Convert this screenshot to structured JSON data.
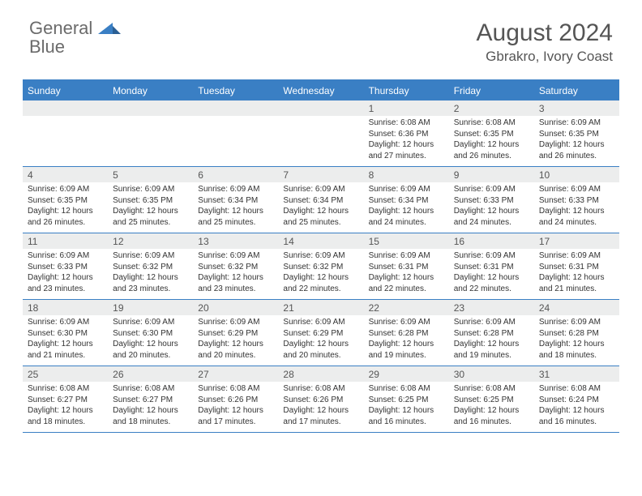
{
  "brand": {
    "general": "General",
    "blue": "Blue"
  },
  "title": "August 2024",
  "location": "Gbrakro, Ivory Coast",
  "colors": {
    "accent": "#3a7fc4",
    "header_text": "#555555",
    "band": "#eceded",
    "body_text": "#333333"
  },
  "day_headers": [
    "Sunday",
    "Monday",
    "Tuesday",
    "Wednesday",
    "Thursday",
    "Friday",
    "Saturday"
  ],
  "weeks": [
    [
      null,
      null,
      null,
      null,
      {
        "n": "1",
        "sr": "6:08 AM",
        "ss": "6:36 PM",
        "dl": "12 hours and 27 minutes."
      },
      {
        "n": "2",
        "sr": "6:08 AM",
        "ss": "6:35 PM",
        "dl": "12 hours and 26 minutes."
      },
      {
        "n": "3",
        "sr": "6:09 AM",
        "ss": "6:35 PM",
        "dl": "12 hours and 26 minutes."
      }
    ],
    [
      {
        "n": "4",
        "sr": "6:09 AM",
        "ss": "6:35 PM",
        "dl": "12 hours and 26 minutes."
      },
      {
        "n": "5",
        "sr": "6:09 AM",
        "ss": "6:35 PM",
        "dl": "12 hours and 25 minutes."
      },
      {
        "n": "6",
        "sr": "6:09 AM",
        "ss": "6:34 PM",
        "dl": "12 hours and 25 minutes."
      },
      {
        "n": "7",
        "sr": "6:09 AM",
        "ss": "6:34 PM",
        "dl": "12 hours and 25 minutes."
      },
      {
        "n": "8",
        "sr": "6:09 AM",
        "ss": "6:34 PM",
        "dl": "12 hours and 24 minutes."
      },
      {
        "n": "9",
        "sr": "6:09 AM",
        "ss": "6:33 PM",
        "dl": "12 hours and 24 minutes."
      },
      {
        "n": "10",
        "sr": "6:09 AM",
        "ss": "6:33 PM",
        "dl": "12 hours and 24 minutes."
      }
    ],
    [
      {
        "n": "11",
        "sr": "6:09 AM",
        "ss": "6:33 PM",
        "dl": "12 hours and 23 minutes."
      },
      {
        "n": "12",
        "sr": "6:09 AM",
        "ss": "6:32 PM",
        "dl": "12 hours and 23 minutes."
      },
      {
        "n": "13",
        "sr": "6:09 AM",
        "ss": "6:32 PM",
        "dl": "12 hours and 23 minutes."
      },
      {
        "n": "14",
        "sr": "6:09 AM",
        "ss": "6:32 PM",
        "dl": "12 hours and 22 minutes."
      },
      {
        "n": "15",
        "sr": "6:09 AM",
        "ss": "6:31 PM",
        "dl": "12 hours and 22 minutes."
      },
      {
        "n": "16",
        "sr": "6:09 AM",
        "ss": "6:31 PM",
        "dl": "12 hours and 22 minutes."
      },
      {
        "n": "17",
        "sr": "6:09 AM",
        "ss": "6:31 PM",
        "dl": "12 hours and 21 minutes."
      }
    ],
    [
      {
        "n": "18",
        "sr": "6:09 AM",
        "ss": "6:30 PM",
        "dl": "12 hours and 21 minutes."
      },
      {
        "n": "19",
        "sr": "6:09 AM",
        "ss": "6:30 PM",
        "dl": "12 hours and 20 minutes."
      },
      {
        "n": "20",
        "sr": "6:09 AM",
        "ss": "6:29 PM",
        "dl": "12 hours and 20 minutes."
      },
      {
        "n": "21",
        "sr": "6:09 AM",
        "ss": "6:29 PM",
        "dl": "12 hours and 20 minutes."
      },
      {
        "n": "22",
        "sr": "6:09 AM",
        "ss": "6:28 PM",
        "dl": "12 hours and 19 minutes."
      },
      {
        "n": "23",
        "sr": "6:09 AM",
        "ss": "6:28 PM",
        "dl": "12 hours and 19 minutes."
      },
      {
        "n": "24",
        "sr": "6:09 AM",
        "ss": "6:28 PM",
        "dl": "12 hours and 18 minutes."
      }
    ],
    [
      {
        "n": "25",
        "sr": "6:08 AM",
        "ss": "6:27 PM",
        "dl": "12 hours and 18 minutes."
      },
      {
        "n": "26",
        "sr": "6:08 AM",
        "ss": "6:27 PM",
        "dl": "12 hours and 18 minutes."
      },
      {
        "n": "27",
        "sr": "6:08 AM",
        "ss": "6:26 PM",
        "dl": "12 hours and 17 minutes."
      },
      {
        "n": "28",
        "sr": "6:08 AM",
        "ss": "6:26 PM",
        "dl": "12 hours and 17 minutes."
      },
      {
        "n": "29",
        "sr": "6:08 AM",
        "ss": "6:25 PM",
        "dl": "12 hours and 16 minutes."
      },
      {
        "n": "30",
        "sr": "6:08 AM",
        "ss": "6:25 PM",
        "dl": "12 hours and 16 minutes."
      },
      {
        "n": "31",
        "sr": "6:08 AM",
        "ss": "6:24 PM",
        "dl": "12 hours and 16 minutes."
      }
    ]
  ],
  "labels": {
    "sunrise": "Sunrise:",
    "sunset": "Sunset:",
    "daylight": "Daylight:"
  }
}
